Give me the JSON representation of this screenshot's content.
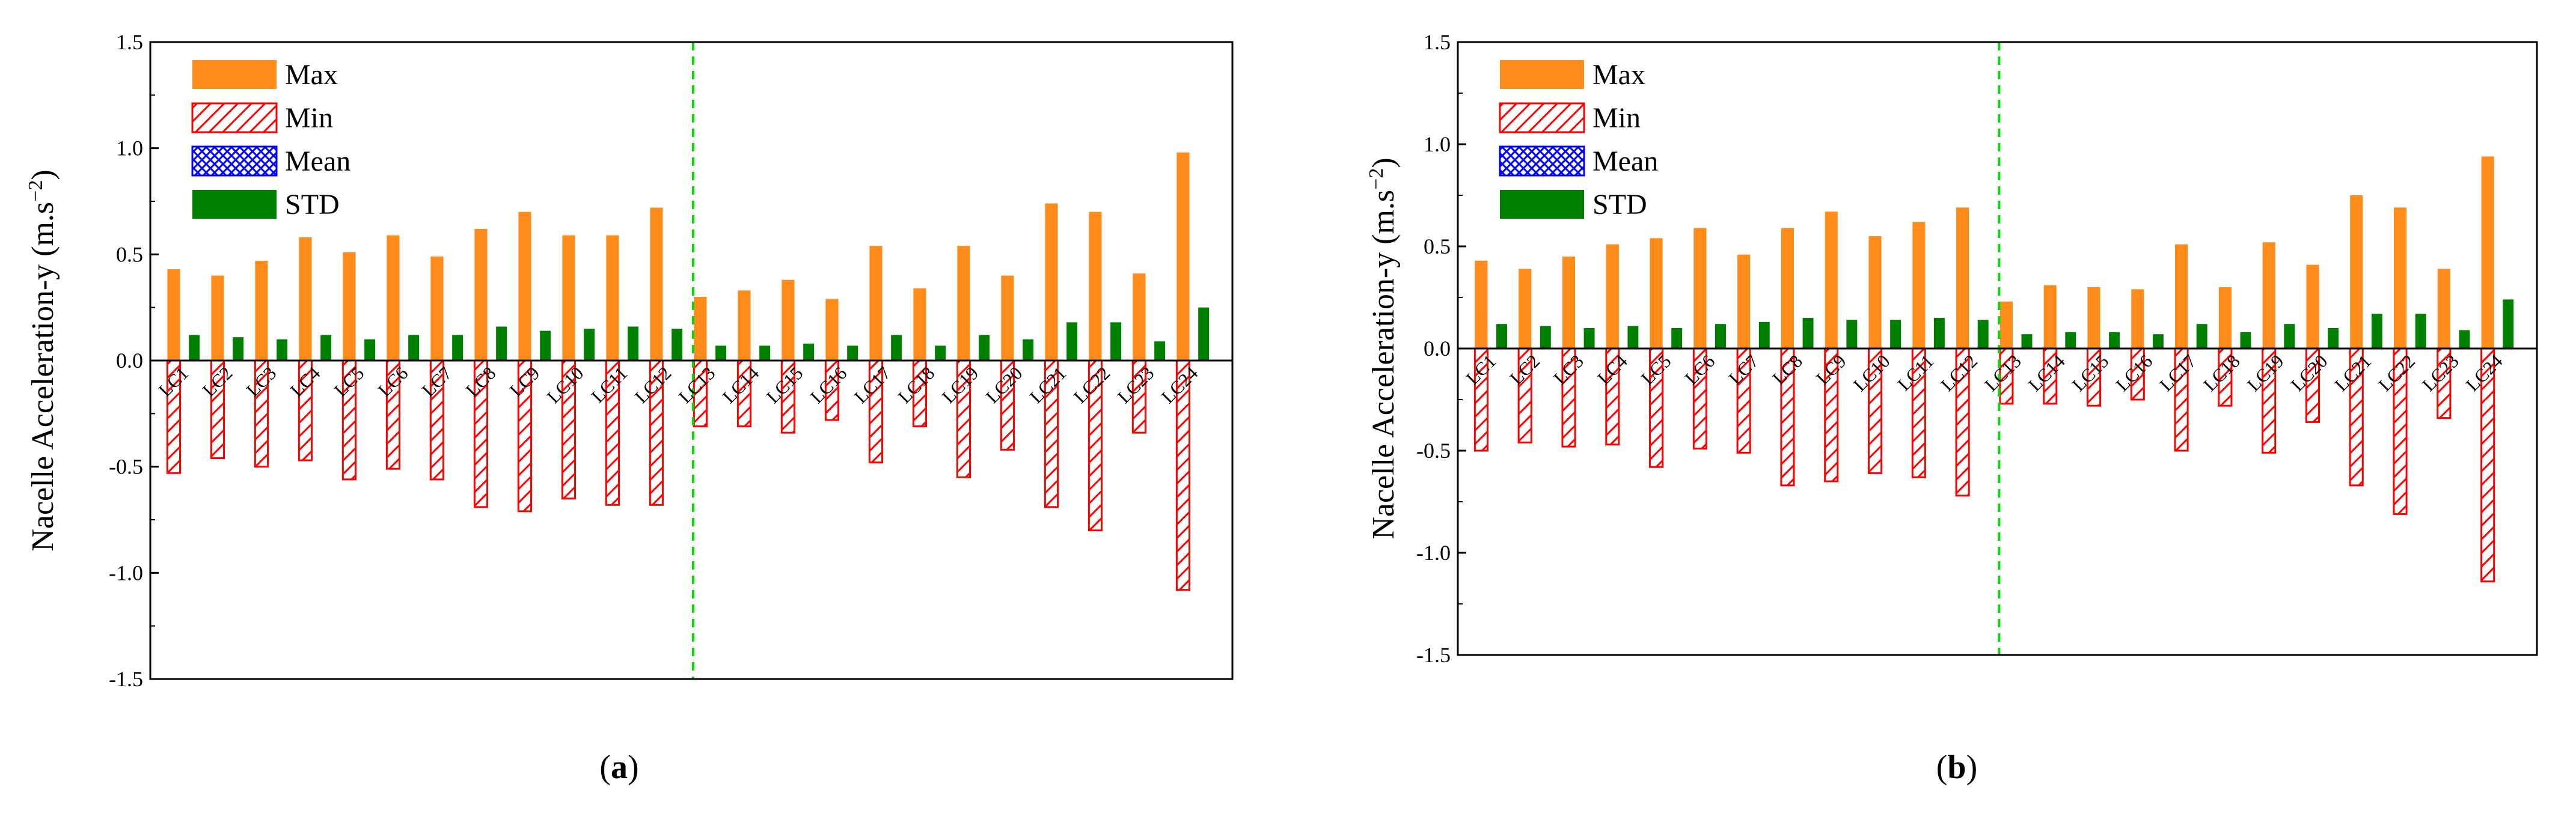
{
  "chart_data": [
    {
      "type": "bar",
      "panel_label": "a",
      "ylabel": "Nacelle Acceleration-y (m.s",
      "ylabel_exp": "−2",
      "ylabel_close": ")",
      "ylim": [
        -1.5,
        1.5
      ],
      "yticks": [
        "-1.5",
        "-1.0",
        "-0.5",
        "0.0",
        "0.5",
        "1.0",
        "1.5"
      ],
      "ytick_values": [
        -1.5,
        -1.0,
        -0.5,
        0.0,
        0.5,
        1.0,
        1.5
      ],
      "grid": false,
      "legend_position": "top-left",
      "divider_after_category": "LC12",
      "categories": [
        "LC1",
        "LC2",
        "LC3",
        "LC4",
        "LC5",
        "LC6",
        "LC7",
        "LC8",
        "LC9",
        "LC10",
        "LC11",
        "LC12",
        "LC13",
        "LC14",
        "LC15",
        "LC16",
        "LC17",
        "LC18",
        "LC19",
        "LC20",
        "LC21",
        "LC22",
        "LC23",
        "LC24"
      ],
      "series": [
        {
          "name": "Max",
          "values": [
            0.43,
            0.4,
            0.47,
            0.58,
            0.51,
            0.59,
            0.49,
            0.62,
            0.7,
            0.59,
            0.59,
            0.72,
            0.3,
            0.33,
            0.38,
            0.29,
            0.54,
            0.34,
            0.54,
            0.4,
            0.74,
            0.7,
            0.41,
            0.98
          ]
        },
        {
          "name": "Min",
          "values": [
            -0.53,
            -0.46,
            -0.5,
            -0.47,
            -0.56,
            -0.51,
            -0.56,
            -0.69,
            -0.71,
            -0.65,
            -0.68,
            -0.68,
            -0.31,
            -0.31,
            -0.34,
            -0.28,
            -0.48,
            -0.31,
            -0.55,
            -0.42,
            -0.69,
            -0.8,
            -0.34,
            -1.08
          ]
        },
        {
          "name": "Mean",
          "values": [
            0,
            0,
            0,
            0,
            0,
            0,
            0,
            0,
            0,
            0,
            0,
            0,
            0,
            0,
            0,
            0,
            0,
            0,
            0,
            0,
            0,
            0,
            0,
            0
          ]
        },
        {
          "name": "STD",
          "values": [
            0.12,
            0.11,
            0.1,
            0.12,
            0.1,
            0.12,
            0.12,
            0.16,
            0.14,
            0.15,
            0.16,
            0.15,
            0.07,
            0.07,
            0.08,
            0.07,
            0.12,
            0.07,
            0.12,
            0.1,
            0.18,
            0.18,
            0.09,
            0.25
          ]
        }
      ]
    },
    {
      "type": "bar",
      "panel_label": "b",
      "ylabel": "Nacelle Acceleration-y (m.s",
      "ylabel_exp": "−2",
      "ylabel_close": ")",
      "ylim": [
        -1.5,
        1.5
      ],
      "yticks": [
        "-1.5",
        "-1.0",
        "-0.5",
        "0.0",
        "0.5",
        "1.0",
        "1.5"
      ],
      "ytick_values": [
        -1.5,
        -1.0,
        -0.5,
        0.0,
        0.5,
        1.0,
        1.5
      ],
      "grid": false,
      "legend_position": "top-left",
      "divider_after_category": "LC12",
      "categories": [
        "LC1",
        "LC2",
        "LC3",
        "LC4",
        "LC5",
        "LC6",
        "LC7",
        "LC8",
        "LC9",
        "LC10",
        "LC11",
        "LC12",
        "LC13",
        "LC14",
        "LC15",
        "LC16",
        "LC17",
        "LC18",
        "LC19",
        "LC20",
        "LC21",
        "LC22",
        "LC23",
        "LC24"
      ],
      "series": [
        {
          "name": "Max",
          "values": [
            0.43,
            0.39,
            0.45,
            0.51,
            0.54,
            0.59,
            0.46,
            0.59,
            0.67,
            0.55,
            0.62,
            0.69,
            0.23,
            0.31,
            0.3,
            0.29,
            0.51,
            0.3,
            0.52,
            0.41,
            0.75,
            0.69,
            0.39,
            0.94
          ]
        },
        {
          "name": "Min",
          "values": [
            -0.5,
            -0.46,
            -0.48,
            -0.47,
            -0.58,
            -0.49,
            -0.51,
            -0.67,
            -0.65,
            -0.61,
            -0.63,
            -0.72,
            -0.27,
            -0.27,
            -0.28,
            -0.25,
            -0.5,
            -0.28,
            -0.51,
            -0.36,
            -0.67,
            -0.81,
            -0.34,
            -1.14
          ]
        },
        {
          "name": "Mean",
          "values": [
            0,
            0,
            0,
            0,
            0,
            0,
            0,
            0,
            0,
            0,
            0,
            0,
            0,
            0,
            0,
            0,
            0,
            0,
            0,
            0,
            0,
            0,
            0,
            0
          ]
        },
        {
          "name": "STD",
          "values": [
            0.12,
            0.11,
            0.1,
            0.11,
            0.1,
            0.12,
            0.13,
            0.15,
            0.14,
            0.14,
            0.15,
            0.14,
            0.07,
            0.08,
            0.08,
            0.07,
            0.12,
            0.08,
            0.12,
            0.1,
            0.17,
            0.17,
            0.09,
            0.24
          ]
        }
      ]
    }
  ],
  "colors": {
    "max": "#FF8C1A",
    "min": "#FF0000",
    "mean": "#0000FF",
    "std": "#008000",
    "divider": "#00E000"
  }
}
